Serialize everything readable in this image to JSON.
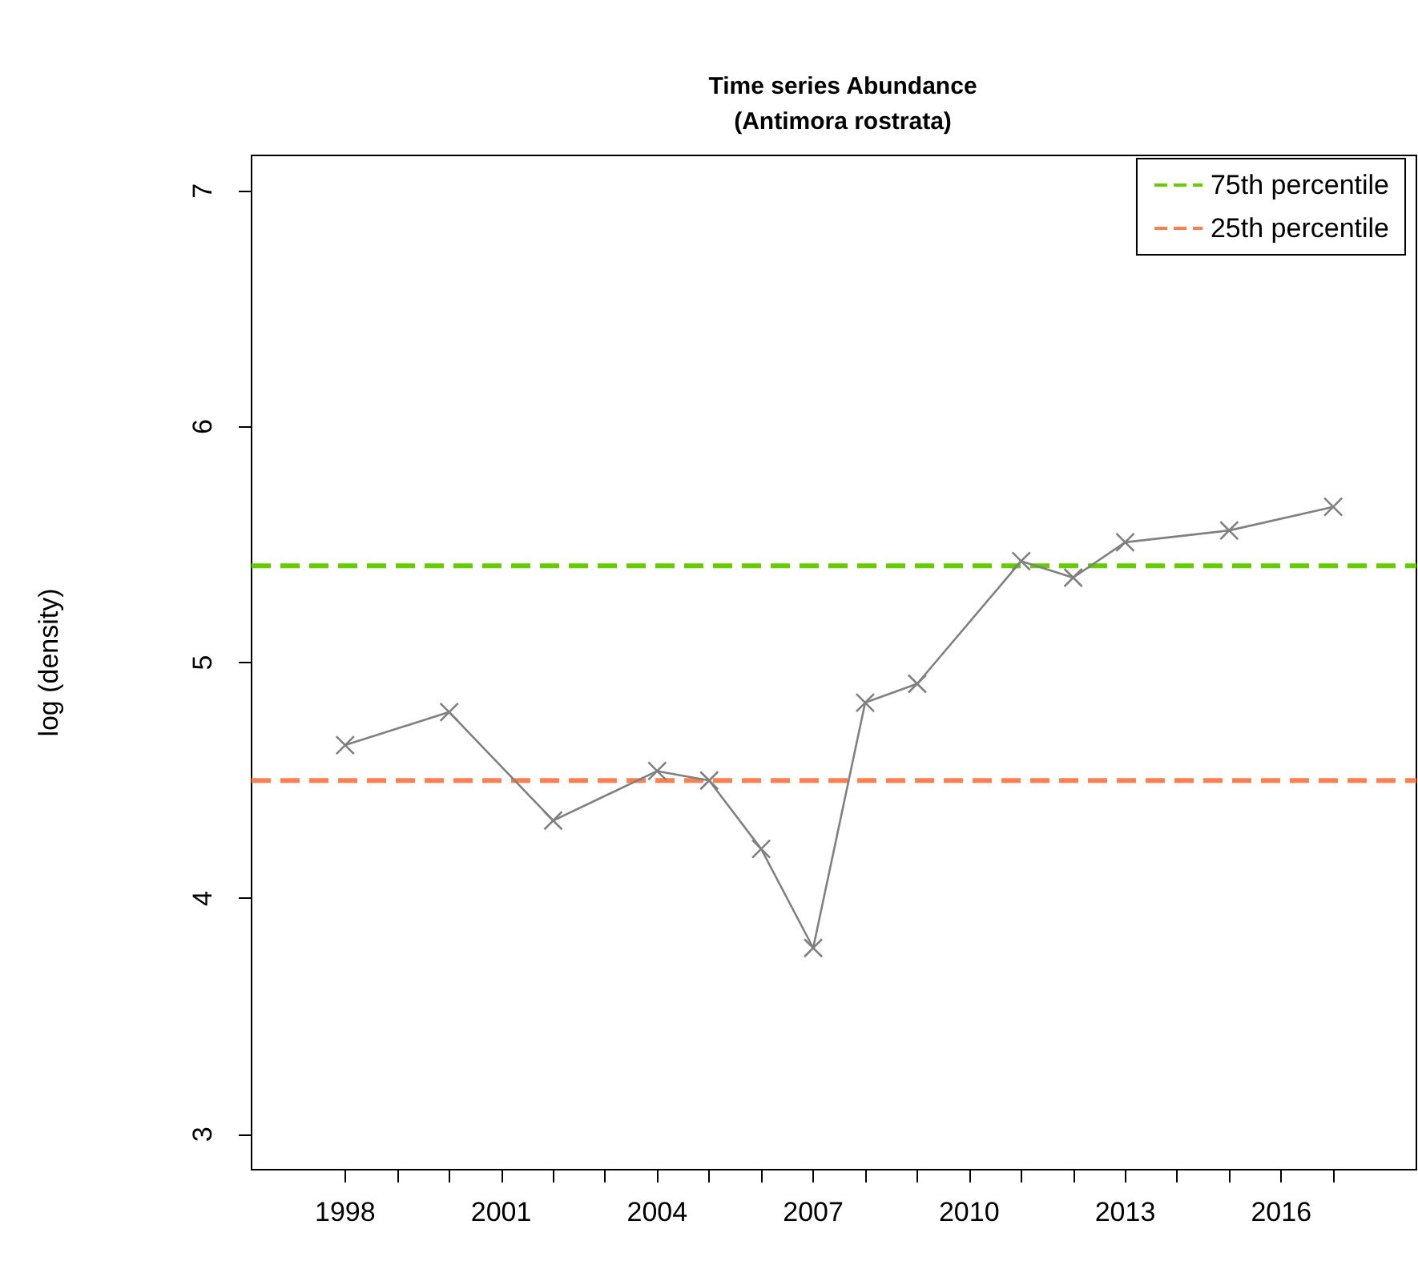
{
  "chart_data": {
    "type": "line",
    "title": "Time series Abundance\n(Antimora rostrata)",
    "ylabel": "log (density)",
    "x": [
      1998,
      2000,
      2002,
      2004,
      2005,
      2006,
      2007,
      2008,
      2009,
      2011,
      2012,
      2013,
      2015,
      2017
    ],
    "series": [
      {
        "color": "#808080",
        "values": [
          4.65,
          4.79,
          4.33,
          4.54,
          4.5,
          4.21,
          3.79,
          4.83,
          4.91,
          5.43,
          5.36,
          5.51,
          5.56,
          5.66
        ]
      }
    ],
    "marker": "cross",
    "line_style": "solid",
    "grid": false,
    "legend": "top right",
    "xlim": [
      1996.2,
      2018.6
    ],
    "ylim": [
      2.85,
      7.15
    ],
    "xticks": [
      1998,
      {
        "value": 1999,
        "label": null
      },
      {
        "value": 2000,
        "label": null
      },
      2001,
      {
        "value": 2002,
        "label": null
      },
      {
        "value": 2003,
        "label": null
      },
      2004,
      {
        "value": 2005,
        "label": null
      },
      {
        "value": 2006,
        "label": null
      },
      2007,
      {
        "value": 2008,
        "label": null
      },
      {
        "value": 2009,
        "label": null
      },
      2010,
      {
        "value": 2011,
        "label": null
      },
      {
        "value": 2012,
        "label": null
      },
      2013,
      {
        "value": 2014,
        "label": null
      },
      {
        "value": 2015,
        "label": null
      },
      2016,
      {
        "value": 2017,
        "label": null
      }
    ],
    "yticks": [
      3,
      4,
      5,
      6,
      7
    ],
    "ref_lines": [
      {
        "axis": "y",
        "value": 5.41,
        "label": "75th percentile",
        "color": "#66cc00",
        "line_style": "dashed"
      },
      {
        "axis": "y",
        "value": 4.5,
        "label": "25th percentile",
        "color": "#ff7f50",
        "line_style": "dashed"
      }
    ]
  }
}
